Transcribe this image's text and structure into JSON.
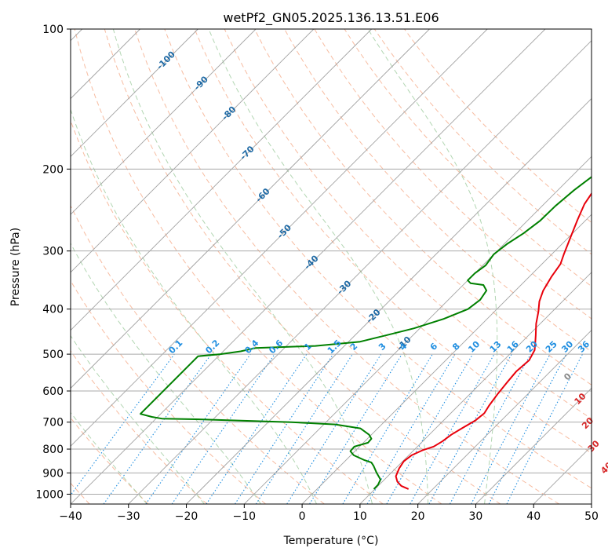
{
  "chart_data": {
    "type": "line",
    "title": "wetPf2_GN05.2025.136.13.51.E06",
    "xlabel": "Temperature (°C)",
    "ylabel": "Pressure (hPa)",
    "xlim": [
      -40,
      50
    ],
    "ylim": [
      1050,
      100
    ],
    "y_scale": "log",
    "grid": true,
    "x_ticks": [
      -40,
      -30,
      -20,
      -10,
      0,
      10,
      20,
      30,
      40,
      50
    ],
    "y_ticks": [
      100,
      200,
      300,
      400,
      500,
      600,
      700,
      800,
      900,
      1000
    ],
    "colors": {
      "temperature": "#e8000b",
      "dewpoint": "#008000",
      "dry_adiabat": "#f4a582",
      "moist_adiabat": "#92c592",
      "mixing_ratio": "#1f8ee0",
      "isotherm": "#999999",
      "isotherm_label": "#1f6aa5",
      "mixing_label": "#1f8ee0",
      "red_label": "#d62728"
    },
    "series": [
      {
        "key": "temperature",
        "points": [
          [
            15.8,
            975
          ],
          [
            14.0,
            960
          ],
          [
            12.6,
            940
          ],
          [
            11.4,
            915
          ],
          [
            10.6,
            880
          ],
          [
            10.2,
            850
          ],
          [
            10.5,
            825
          ],
          [
            11.5,
            805
          ],
          [
            12.8,
            790
          ],
          [
            13.4,
            770
          ],
          [
            13.8,
            745
          ],
          [
            14.6,
            720
          ],
          [
            15.5,
            695
          ],
          [
            15.8,
            670
          ],
          [
            15.3,
            645
          ],
          [
            14.8,
            610
          ],
          [
            14.4,
            575
          ],
          [
            14.1,
            545
          ],
          [
            14.4,
            515
          ],
          [
            13.6,
            490
          ],
          [
            12.6,
            475
          ],
          [
            11.2,
            455
          ],
          [
            9.3,
            430
          ],
          [
            7.6,
            405
          ],
          [
            6.0,
            385
          ],
          [
            4.8,
            365
          ],
          [
            3.8,
            340
          ],
          [
            3.2,
            320
          ],
          [
            2.1,
            305
          ],
          [
            0.3,
            280
          ],
          [
            -1.5,
            257
          ],
          [
            -3.0,
            238
          ],
          [
            -3.8,
            222
          ],
          [
            -4.1,
            205
          ],
          [
            -3.6,
            195
          ],
          [
            -2.4,
            186
          ],
          [
            0.0,
            175
          ],
          [
            3.0,
            165
          ],
          [
            5.2,
            155
          ],
          [
            7.3,
            143
          ],
          [
            9.4,
            132
          ],
          [
            11.8,
            121
          ],
          [
            14.2,
            112
          ],
          [
            17.6,
            106
          ],
          [
            19.2,
            100
          ]
        ]
      },
      {
        "key": "dewpoint",
        "points": [
          [
            9.8,
            975
          ],
          [
            9.8,
            955
          ],
          [
            9.3,
            930
          ],
          [
            7.5,
            900
          ],
          [
            5.8,
            870
          ],
          [
            4.8,
            855
          ],
          [
            3.2,
            845
          ],
          [
            0.5,
            825
          ],
          [
            -0.8,
            808
          ],
          [
            -0.9,
            790
          ],
          [
            0.8,
            775
          ],
          [
            0.7,
            760
          ],
          [
            -0.4,
            745
          ],
          [
            -3.0,
            722
          ],
          [
            -8.0,
            708
          ],
          [
            -16.0,
            700
          ],
          [
            -25.0,
            695
          ],
          [
            -33.0,
            690
          ],
          [
            -39.0,
            688
          ],
          [
            -41.0,
            682
          ],
          [
            -43.5,
            672
          ],
          [
            -43.5,
            505
          ],
          [
            -40.0,
            500
          ],
          [
            -37.0,
            493
          ],
          [
            -35.0,
            485
          ],
          [
            -25.0,
            480
          ],
          [
            -18.0,
            470
          ],
          [
            -14.5,
            455
          ],
          [
            -11.0,
            440
          ],
          [
            -7.5,
            420
          ],
          [
            -5.0,
            400
          ],
          [
            -4.5,
            382
          ],
          [
            -5.0,
            365
          ],
          [
            -6.5,
            355
          ],
          [
            -9.0,
            352
          ],
          [
            -10.0,
            347
          ],
          [
            -10.0,
            335
          ],
          [
            -9.5,
            322
          ],
          [
            -10.0,
            305
          ],
          [
            -9.5,
            290
          ],
          [
            -8.5,
            275
          ],
          [
            -7.8,
            258
          ],
          [
            -7.7,
            240
          ],
          [
            -7.2,
            222
          ],
          [
            -6.3,
            205
          ],
          [
            -6.8,
            190
          ],
          [
            -8.2,
            176
          ],
          [
            -8.8,
            162
          ],
          [
            -8.6,
            148
          ],
          [
            -8.3,
            138
          ],
          [
            -7.2,
            128
          ],
          [
            -5.2,
            118
          ],
          [
            -4.2,
            112
          ],
          [
            -3.0,
            106
          ],
          [
            -1.8,
            100
          ]
        ]
      }
    ],
    "isotherm_labels": [
      -100,
      -90,
      -80,
      -70,
      -60,
      -50,
      -40,
      -30,
      -20,
      -10
    ],
    "isotherm_label_pressure": [
      117,
      131,
      152,
      185,
      228,
      273,
      318,
      360,
      415,
      475
    ],
    "mixing_ratio_labels": [
      "0.1",
      "0.2",
      "0.4",
      "0.6",
      "1",
      "1.5",
      "2",
      "3",
      "4",
      "6",
      "8",
      "10",
      "13",
      "16",
      "20",
      "25",
      "30",
      "36"
    ],
    "mixing_ratio_values": [
      0.1,
      0.2,
      0.4,
      0.6,
      1,
      1.5,
      2,
      3,
      4,
      6,
      8,
      10,
      13,
      16,
      20,
      25,
      30,
      36
    ],
    "mixing_ratio_top": 500,
    "dry_adiabats_C": [
      -110,
      -100,
      -90,
      -80,
      -70,
      -60,
      -50,
      -40,
      -30,
      -20,
      -10,
      0,
      10,
      20,
      30,
      40,
      50,
      60,
      70,
      80,
      90,
      100,
      110,
      120,
      130
    ],
    "moist_adiabats_C": [
      -30,
      -20,
      -10,
      0,
      10,
      20,
      30
    ],
    "theta_e_labels": [
      {
        "text": "0",
        "t": 24.0,
        "p": 560,
        "color": "#888888"
      },
      {
        "text": "10",
        "t": 30.0,
        "p": 625,
        "color": "#d62728"
      },
      {
        "text": "20",
        "t": 35.5,
        "p": 705,
        "color": "#d62728"
      },
      {
        "text": "30",
        "t": 40.5,
        "p": 790,
        "color": "#d62728"
      },
      {
        "text": "40",
        "t": 46.5,
        "p": 880,
        "color": "#d62728"
      }
    ]
  }
}
